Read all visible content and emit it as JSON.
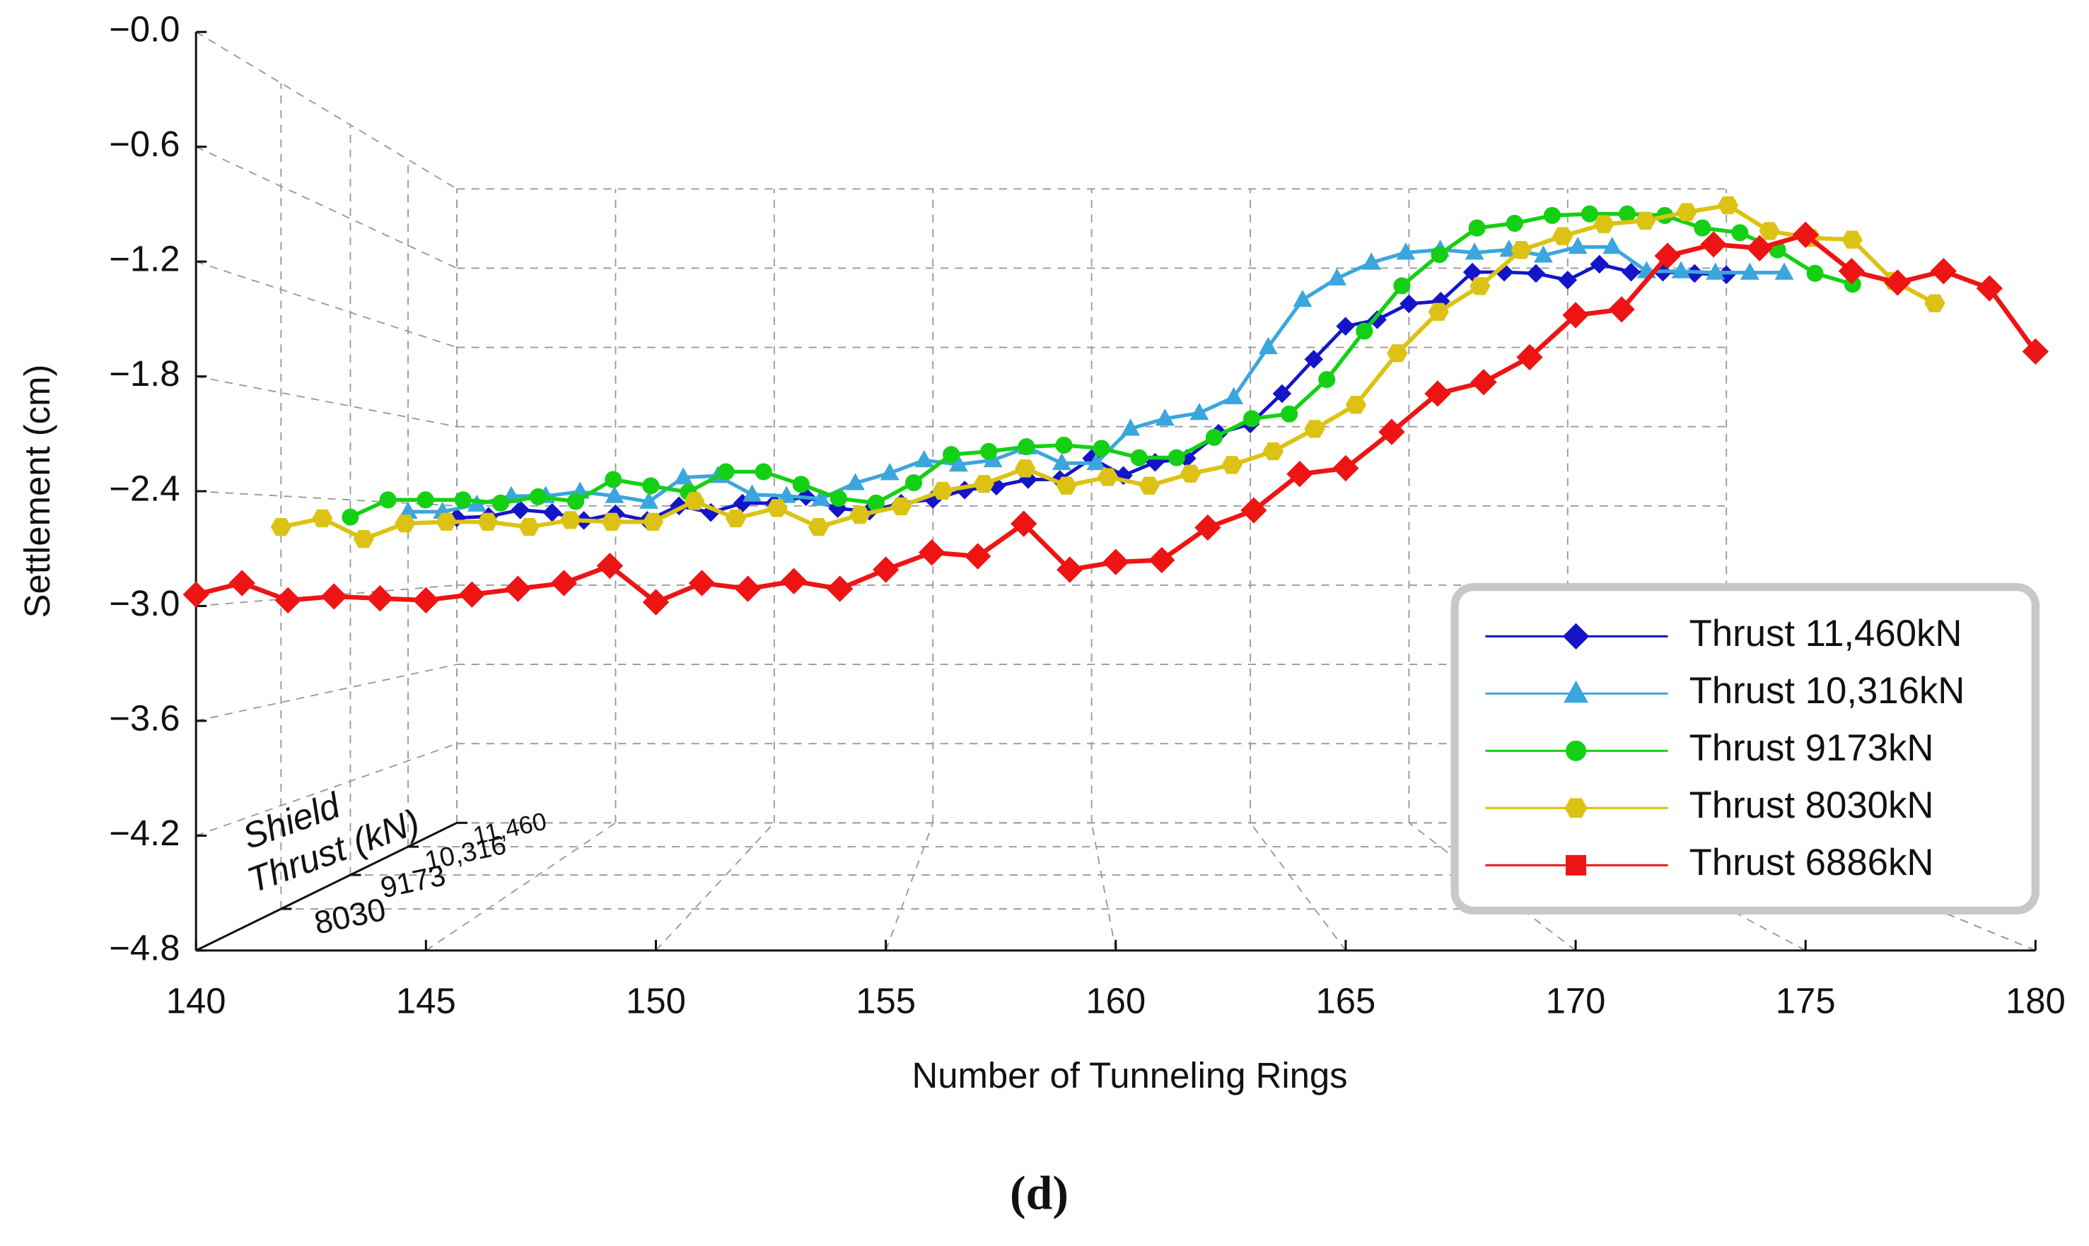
{
  "chart_data": {
    "type": "line3d",
    "ylabel": "Settlement (cm)",
    "xlabel": "Number of Tunneling Rings",
    "zlabel": [
      "Shield",
      "Thrust (kN)"
    ],
    "caption": "(d)",
    "xlim": [
      140,
      180
    ],
    "xticks": [
      140,
      145,
      150,
      155,
      160,
      165,
      170,
      175,
      180
    ],
    "ylim": [
      -4.8,
      0
    ],
    "yticks": [
      {
        "value": 0,
        "label": "−0.0"
      },
      {
        "value": -0.6,
        "label": "−0.6"
      },
      {
        "value": -1.2,
        "label": "−1.2"
      },
      {
        "value": -1.8,
        "label": "−1.8"
      },
      {
        "value": -2.4,
        "label": "−2.4"
      },
      {
        "value": -3.0,
        "label": "−3.0"
      },
      {
        "value": -3.6,
        "label": "−3.6"
      },
      {
        "value": -4.2,
        "label": "−4.2"
      },
      {
        "value": -4.8,
        "label": "−4.8"
      }
    ],
    "zlim": [
      6886,
      11460
    ],
    "zticks": [
      8030,
      9173,
      {
        "value": 10316,
        "label": "10,316"
      },
      {
        "value": 11460,
        "label": "11,460"
      }
    ],
    "grid": true,
    "legend": "lower right",
    "x": [
      140,
      141,
      142,
      143,
      144,
      145,
      146,
      147,
      148,
      149,
      150,
      151,
      152,
      153,
      154,
      155,
      156,
      157,
      158,
      159,
      160,
      161,
      162,
      163,
      164,
      165,
      166,
      167,
      168,
      169,
      170,
      171,
      172,
      173,
      174,
      175,
      176,
      177,
      178,
      179,
      180
    ],
    "series": [
      {
        "name": "Thrust 11,460kN",
        "color": "#1414c8",
        "marker": "diamond",
        "z": 11460,
        "values": [
          -2.49,
          -2.48,
          -2.43,
          -2.45,
          -2.51,
          -2.46,
          -2.51,
          -2.4,
          -2.45,
          -2.38,
          -2.38,
          -2.33,
          -2.42,
          -2.44,
          -2.38,
          -2.35,
          -2.28,
          -2.25,
          -2.2,
          -2.2,
          -2.04,
          -2.17,
          -2.07,
          -2.04,
          -1.85,
          -1.78,
          -1.55,
          -1.29,
          -1.04,
          -0.99,
          -0.87,
          -0.85,
          -0.63,
          -0.63,
          -0.64,
          -0.69,
          -0.57,
          -0.63,
          -0.63,
          -0.64,
          -0.65
        ]
      },
      {
        "name": "Thrust 10,316kN",
        "color": "#3ba6dc",
        "marker": "triangle",
        "z": 10316,
        "values": [
          -2.46,
          -2.46,
          -2.41,
          -2.35,
          -2.35,
          -2.32,
          -2.35,
          -2.39,
          -2.22,
          -2.21,
          -2.34,
          -2.35,
          -2.37,
          -2.26,
          -2.19,
          -2.1,
          -2.13,
          -2.1,
          -2.01,
          -2.12,
          -2.12,
          -1.88,
          -1.81,
          -1.77,
          -1.66,
          -1.31,
          -0.98,
          -0.83,
          -0.72,
          -0.65,
          -0.63,
          -0.65,
          -0.63,
          -0.67,
          -0.61,
          -0.61,
          -0.78,
          -0.78,
          -0.79,
          -0.79,
          -0.79
        ]
      },
      {
        "name": "Thrust 9173kN",
        "color": "#14d014",
        "marker": "circle",
        "z": 9173,
        "values": [
          -2.51,
          -2.4,
          -2.4,
          -2.4,
          -2.42,
          -2.38,
          -2.41,
          -2.27,
          -2.31,
          -2.35,
          -2.22,
          -2.22,
          -2.3,
          -2.39,
          -2.42,
          -2.29,
          -2.11,
          -2.09,
          -2.06,
          -2.05,
          -2.07,
          -2.13,
          -2.13,
          -2.0,
          -1.88,
          -1.85,
          -1.63,
          -1.32,
          -1.03,
          -0.83,
          -0.66,
          -0.63,
          -0.58,
          -0.57,
          -0.57,
          -0.58,
          -0.66,
          -0.69,
          -0.8,
          -0.95,
          -1.02
        ]
      },
      {
        "name": "Thrust 8030kN",
        "color": "#dcc214",
        "marker": "hexagon",
        "z": 8030,
        "values": [
          -2.58,
          -2.53,
          -2.65,
          -2.56,
          -2.55,
          -2.55,
          -2.58,
          -2.54,
          -2.55,
          -2.55,
          -2.43,
          -2.53,
          -2.47,
          -2.58,
          -2.51,
          -2.46,
          -2.37,
          -2.33,
          -2.24,
          -2.34,
          -2.29,
          -2.34,
          -2.27,
          -2.22,
          -2.14,
          -2.01,
          -1.87,
          -1.57,
          -1.33,
          -1.18,
          -0.97,
          -0.89,
          -0.82,
          -0.8,
          -0.75,
          -0.71,
          -0.86,
          -0.9,
          -0.91,
          -1.15,
          -1.28
        ]
      },
      {
        "name": "Thrust 6886kN",
        "color": "#ee1414",
        "marker": "diamond",
        "z": 6886,
        "values": [
          -2.94,
          -2.88,
          -2.97,
          -2.95,
          -2.96,
          -2.97,
          -2.94,
          -2.91,
          -2.88,
          -2.79,
          -2.98,
          -2.88,
          -2.91,
          -2.87,
          -2.91,
          -2.81,
          -2.72,
          -2.74,
          -2.57,
          -2.81,
          -2.77,
          -2.76,
          -2.59,
          -2.5,
          -2.31,
          -2.28,
          -2.09,
          -1.89,
          -1.83,
          -1.7,
          -1.48,
          -1.45,
          -1.17,
          -1.11,
          -1.13,
          -1.06,
          -1.25,
          -1.31,
          -1.25,
          -1.34,
          -1.67
        ]
      }
    ]
  }
}
